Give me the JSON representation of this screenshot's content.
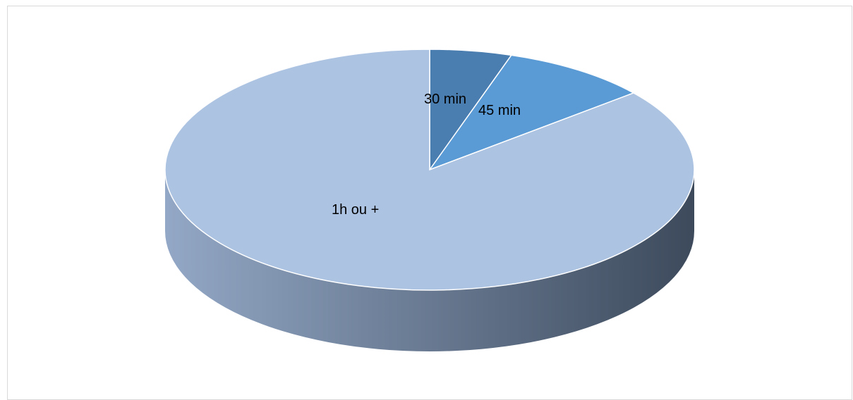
{
  "chart_data": {
    "type": "pie",
    "style": "3d",
    "slices": [
      {
        "label": "30 min",
        "value": 5,
        "color": "#4a7db0"
      },
      {
        "label": "45 min",
        "value": 9,
        "color": "#5b9bd5"
      },
      {
        "label": "1h ou +",
        "value": 86,
        "color": "#adc3e2"
      }
    ],
    "side_colors": [
      "#93a8c6",
      "#3d4a5c"
    ],
    "legend": "none"
  }
}
